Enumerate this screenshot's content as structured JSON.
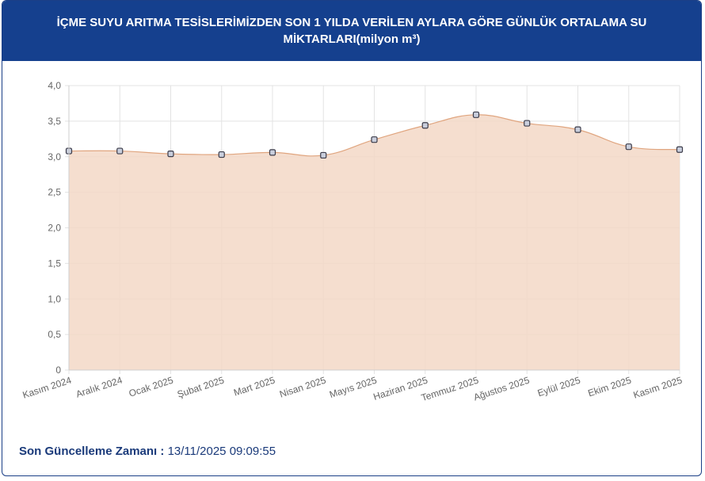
{
  "header": {
    "title_line1": "İÇME SUYU ARITMA TESİSLERİMİZDEN SON 1 YILDA VERİLEN AYLARA GÖRE GÜNLÜK ORTALAMA SU",
    "title_line2": "MİKTARLARI(milyon m³)"
  },
  "chart_data": {
    "type": "area",
    "categories": [
      "Kasım 2024",
      "Aralık 2024",
      "Ocak 2025",
      "Şubat 2025",
      "Mart 2025",
      "Nisan 2025",
      "Mayıs 2025",
      "Haziran 2025",
      "Temmuz 2025",
      "Ağustos 2025",
      "Eylül 2025",
      "Ekim 2025",
      "Kasım 2025"
    ],
    "values": [
      3.08,
      3.08,
      3.04,
      3.03,
      3.06,
      3.02,
      3.24,
      3.44,
      3.59,
      3.47,
      3.38,
      3.14,
      3.1
    ],
    "y_ticks": [
      "0",
      "0,5",
      "1,0",
      "1,5",
      "2,0",
      "2,5",
      "3,0",
      "3,5",
      "4,0"
    ],
    "ylim": [
      0,
      4
    ],
    "grid": true,
    "colors": {
      "fill": "#f3d8c7",
      "line": "#e0a57f",
      "grid": "#e3e3e3",
      "point_fill": "#c9cedc",
      "point_stroke": "#3c3c4a",
      "axis_text": "#666666"
    }
  },
  "footer": {
    "label": "Son Güncelleme Zamanı :",
    "value": "13/11/2025 09:09:55"
  }
}
